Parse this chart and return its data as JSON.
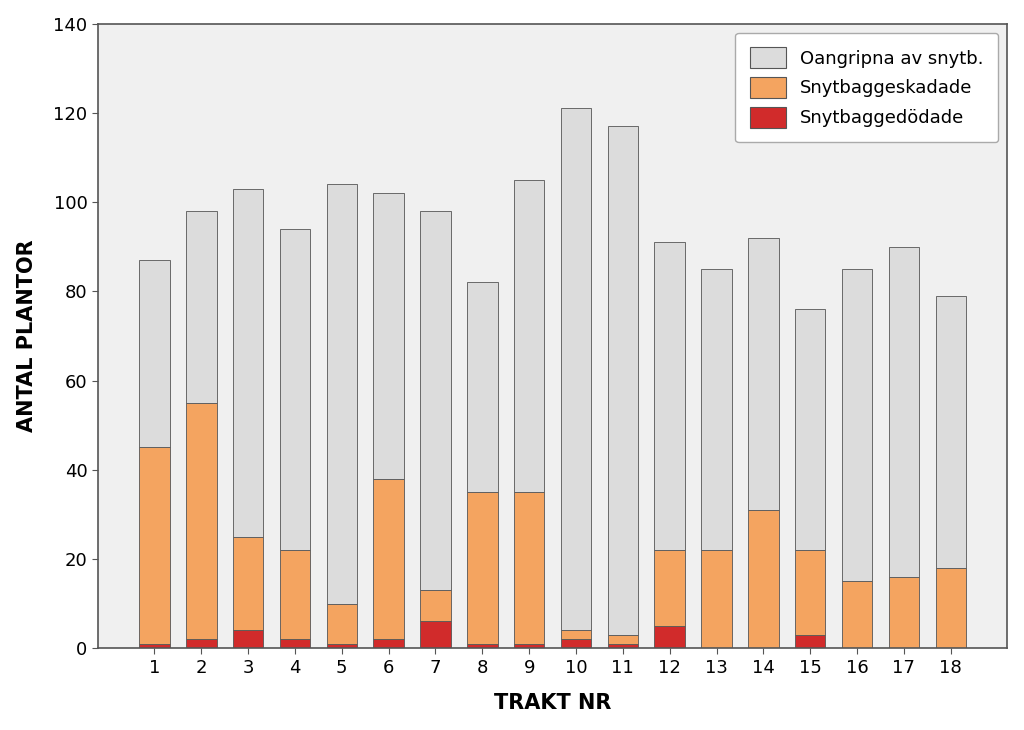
{
  "categories": [
    "1",
    "2",
    "3",
    "4",
    "5",
    "6",
    "7",
    "8",
    "9",
    "10",
    "11",
    "12",
    "13",
    "14",
    "15",
    "16",
    "17",
    "18"
  ],
  "snytbaggedodade": [
    1,
    2,
    4,
    2,
    1,
    2,
    6,
    1,
    1,
    2,
    1,
    5,
    0,
    0,
    3,
    0,
    0,
    0
  ],
  "snytbaggeskadade": [
    44,
    53,
    21,
    20,
    9,
    36,
    7,
    34,
    34,
    2,
    2,
    17,
    22,
    31,
    19,
    15,
    16,
    18
  ],
  "oangripna": [
    42,
    43,
    78,
    72,
    94,
    64,
    85,
    47,
    70,
    117,
    114,
    69,
    63,
    61,
    54,
    70,
    74,
    61
  ],
  "color_dodade": "#d12b2b",
  "color_skadade": "#f4a460",
  "color_oangripna": "#dcdcdc",
  "xlabel": "TRAKT NR",
  "ylabel": "ANTAL PLANTOR",
  "ylim": [
    0,
    140
  ],
  "yticks": [
    0,
    20,
    40,
    60,
    80,
    100,
    120,
    140
  ],
  "legend_labels": [
    "Oangripna av snytb.",
    "Snytbaggeskadade",
    "Snytbaggedödade"
  ],
  "bar_width": 0.65,
  "edgecolor": "#555555",
  "plot_bg": "#f0f0f0",
  "fig_bg": "#ffffff"
}
